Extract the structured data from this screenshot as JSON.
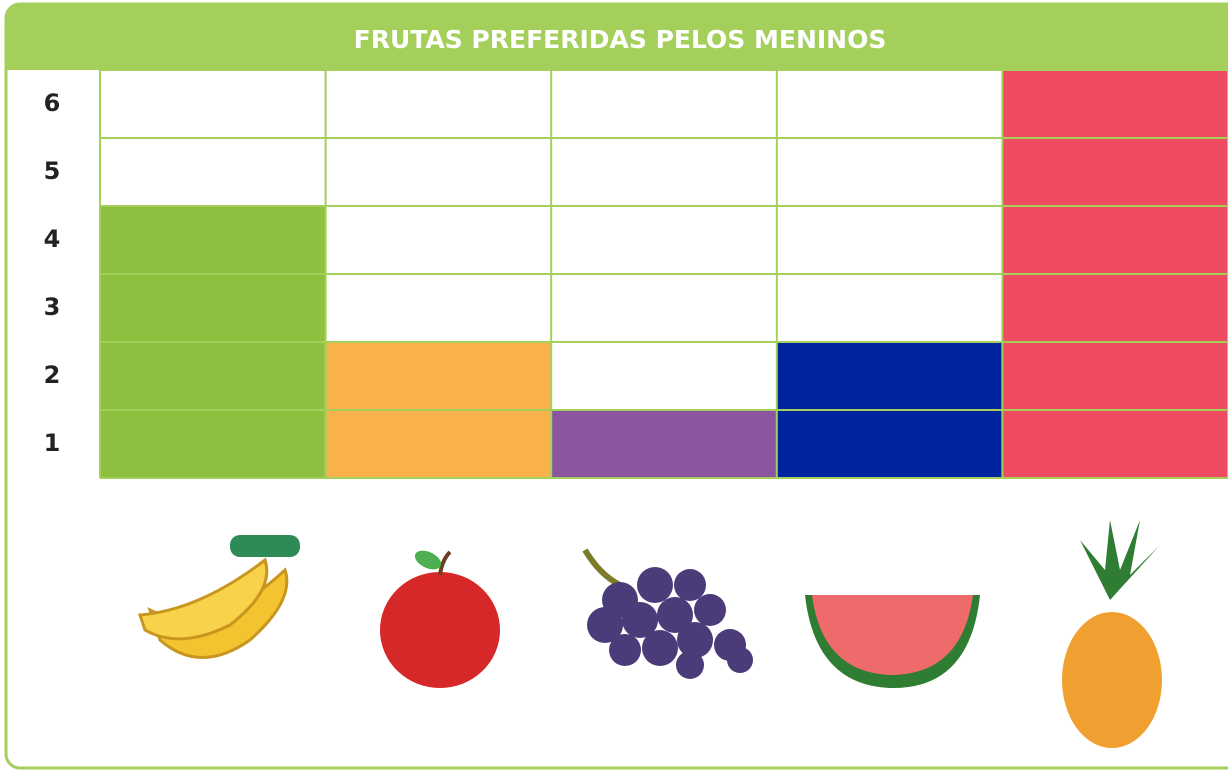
{
  "chart_data": {
    "type": "bar",
    "title": "FRUTAS PREFERIDAS PELOS MENINOS",
    "categories": [
      null,
      null,
      null,
      null,
      null
    ],
    "values": [
      4,
      2,
      1,
      2,
      6
    ],
    "colors": [
      "#8dc03f",
      "#f9b24b",
      "#8c55a0",
      "#0023a0",
      "#ef4b62"
    ],
    "ylim": [
      0,
      6
    ],
    "yticks": [
      1,
      2,
      3,
      4,
      5,
      6
    ],
    "grid": true
  }
}
